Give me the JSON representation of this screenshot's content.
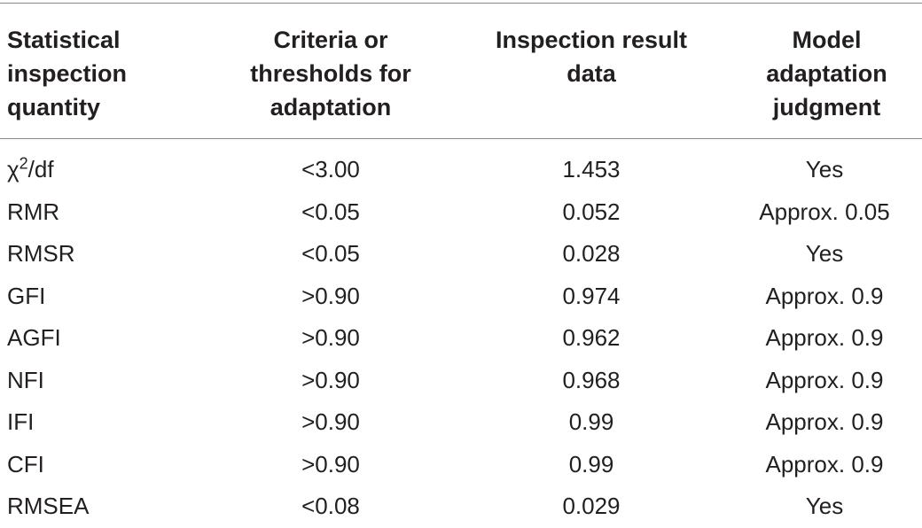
{
  "table": {
    "headers": [
      [
        "Statistical",
        "inspection",
        "quantity"
      ],
      [
        "Criteria or",
        "thresholds for",
        "adaptation"
      ],
      [
        "Inspection result",
        "data"
      ],
      [
        "Model",
        "adaptation",
        "judgment"
      ]
    ],
    "rows": [
      {
        "quantity": "χ",
        "quantity_sup": "2",
        "quantity_suffix": "/df",
        "criteria": "<3.00",
        "result": "1.453",
        "judgment": "Yes"
      },
      {
        "quantity": "RMR",
        "quantity_sup": "",
        "quantity_suffix": "",
        "criteria": "<0.05",
        "result": "0.052",
        "judgment": "Approx. 0.05"
      },
      {
        "quantity": "RMSR",
        "quantity_sup": "",
        "quantity_suffix": "",
        "criteria": "<0.05",
        "result": "0.028",
        "judgment": "Yes"
      },
      {
        "quantity": "GFI",
        "quantity_sup": "",
        "quantity_suffix": "",
        "criteria": ">0.90",
        "result": "0.974",
        "judgment": "Approx. 0.9"
      },
      {
        "quantity": "AGFI",
        "quantity_sup": "",
        "quantity_suffix": "",
        "criteria": ">0.90",
        "result": "0.962",
        "judgment": "Approx. 0.9"
      },
      {
        "quantity": "NFI",
        "quantity_sup": "",
        "quantity_suffix": "",
        "criteria": ">0.90",
        "result": "0.968",
        "judgment": "Approx. 0.9"
      },
      {
        "quantity": "IFI",
        "quantity_sup": "",
        "quantity_suffix": "",
        "criteria": ">0.90",
        "result": "0.99",
        "judgment": "Approx. 0.9"
      },
      {
        "quantity": "CFI",
        "quantity_sup": "",
        "quantity_suffix": "",
        "criteria": ">0.90",
        "result": "0.99",
        "judgment": "Approx. 0.9"
      },
      {
        "quantity": "RMSEA",
        "quantity_sup": "",
        "quantity_suffix": "",
        "criteria": "<0.08",
        "result": "0.029",
        "judgment": "Yes"
      }
    ]
  }
}
